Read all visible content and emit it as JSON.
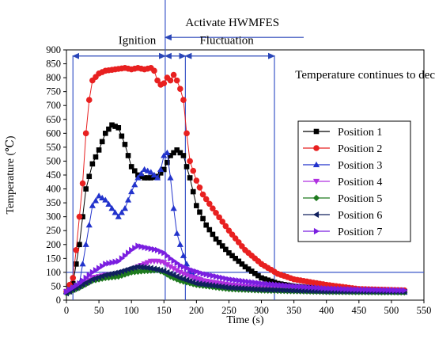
{
  "chart_data": {
    "type": "line",
    "xlabel": "Time (s)",
    "ylabel": "Temperature (℃)",
    "xlim": [
      0,
      550
    ],
    "ylim": [
      0,
      900
    ],
    "xticks": [
      0,
      50,
      100,
      150,
      200,
      250,
      300,
      350,
      400,
      450,
      500,
      550
    ],
    "yticks": [
      0,
      50,
      100,
      150,
      200,
      250,
      300,
      350,
      400,
      450,
      500,
      550,
      600,
      650,
      700,
      750,
      800,
      850,
      900
    ],
    "legend_position": "right",
    "reference_lines": {
      "vertical_x": [
        10,
        152,
        183,
        320
      ],
      "horizontal_y": [
        100
      ]
    },
    "annotations": [
      {
        "text": "Activate HWMFES",
        "x": 183,
        "y": 985
      },
      {
        "text": "Ignition",
        "x": 80,
        "y": 922
      },
      {
        "text": "Fluctuation",
        "x": 205,
        "y": 922
      },
      {
        "text": "Temperature continues to decline",
        "x": 352,
        "y": 798
      }
    ],
    "spans": [
      {
        "x_from": 10,
        "x_to": 152,
        "y": 878
      },
      {
        "x_from": 152,
        "x_to": 183,
        "y": 878
      },
      {
        "x_from": 183,
        "x_to": 320,
        "y": 878
      }
    ],
    "arrow": {
      "x_from": 365,
      "x_to": 152,
      "y": 945
    },
    "series": [
      {
        "name": "Position 1",
        "color": "#000000",
        "marker": "square",
        "points": [
          [
            0,
            30
          ],
          [
            10,
            60
          ],
          [
            20,
            200
          ],
          [
            30,
            400
          ],
          [
            40,
            490
          ],
          [
            50,
            540
          ],
          [
            60,
            600
          ],
          [
            70,
            630
          ],
          [
            80,
            620
          ],
          [
            90,
            560
          ],
          [
            100,
            480
          ],
          [
            110,
            450
          ],
          [
            120,
            440
          ],
          [
            130,
            440
          ],
          [
            140,
            445
          ],
          [
            150,
            470
          ],
          [
            160,
            520
          ],
          [
            170,
            540
          ],
          [
            180,
            520
          ],
          [
            190,
            440
          ],
          [
            200,
            340
          ],
          [
            215,
            270
          ],
          [
            230,
            220
          ],
          [
            250,
            170
          ],
          [
            275,
            120
          ],
          [
            300,
            80
          ],
          [
            325,
            60
          ],
          [
            350,
            50
          ],
          [
            400,
            40
          ],
          [
            450,
            35
          ],
          [
            520,
            30
          ]
        ]
      },
      {
        "name": "Position 2",
        "color": "#e82020",
        "marker": "circle",
        "points": [
          [
            0,
            30
          ],
          [
            10,
            80
          ],
          [
            15,
            180
          ],
          [
            20,
            300
          ],
          [
            25,
            420
          ],
          [
            30,
            600
          ],
          [
            35,
            720
          ],
          [
            40,
            790
          ],
          [
            50,
            815
          ],
          [
            60,
            825
          ],
          [
            75,
            830
          ],
          [
            90,
            835
          ],
          [
            100,
            830
          ],
          [
            110,
            835
          ],
          [
            120,
            830
          ],
          [
            130,
            835
          ],
          [
            135,
            825
          ],
          [
            140,
            790
          ],
          [
            145,
            775
          ],
          [
            150,
            780
          ],
          [
            155,
            800
          ],
          [
            160,
            790
          ],
          [
            165,
            810
          ],
          [
            170,
            790
          ],
          [
            175,
            760
          ],
          [
            180,
            720
          ],
          [
            185,
            600
          ],
          [
            190,
            500
          ],
          [
            200,
            430
          ],
          [
            210,
            380
          ],
          [
            225,
            330
          ],
          [
            250,
            250
          ],
          [
            275,
            180
          ],
          [
            300,
            130
          ],
          [
            325,
            95
          ],
          [
            350,
            75
          ],
          [
            400,
            55
          ],
          [
            450,
            40
          ],
          [
            520,
            35
          ]
        ]
      },
      {
        "name": "Position 3",
        "color": "#2233cc",
        "marker": "triangle-up",
        "points": [
          [
            0,
            30
          ],
          [
            20,
            60
          ],
          [
            30,
            200
          ],
          [
            40,
            340
          ],
          [
            50,
            375
          ],
          [
            60,
            360
          ],
          [
            70,
            330
          ],
          [
            80,
            300
          ],
          [
            90,
            330
          ],
          [
            100,
            390
          ],
          [
            110,
            440
          ],
          [
            120,
            470
          ],
          [
            130,
            460
          ],
          [
            140,
            440
          ],
          [
            145,
            470
          ],
          [
            150,
            520
          ],
          [
            155,
            530
          ],
          [
            160,
            440
          ],
          [
            165,
            330
          ],
          [
            170,
            240
          ],
          [
            180,
            160
          ],
          [
            190,
            100
          ],
          [
            200,
            80
          ],
          [
            220,
            60
          ],
          [
            250,
            50
          ],
          [
            300,
            40
          ],
          [
            350,
            35
          ],
          [
            450,
            32
          ],
          [
            520,
            30
          ]
        ]
      },
      {
        "name": "Position 4",
        "color": "#b030e0",
        "marker": "triangle-down",
        "points": [
          [
            0,
            30
          ],
          [
            20,
            50
          ],
          [
            40,
            80
          ],
          [
            60,
            90
          ],
          [
            80,
            95
          ],
          [
            100,
            110
          ],
          [
            110,
            120
          ],
          [
            120,
            130
          ],
          [
            130,
            140
          ],
          [
            140,
            140
          ],
          [
            150,
            135
          ],
          [
            160,
            120
          ],
          [
            175,
            100
          ],
          [
            190,
            85
          ],
          [
            210,
            70
          ],
          [
            250,
            55
          ],
          [
            300,
            45
          ],
          [
            400,
            35
          ],
          [
            520,
            30
          ]
        ]
      },
      {
        "name": "Position 5",
        "color": "#1e7a1e",
        "marker": "diamond",
        "points": [
          [
            0,
            25
          ],
          [
            20,
            45
          ],
          [
            40,
            70
          ],
          [
            60,
            80
          ],
          [
            80,
            85
          ],
          [
            100,
            100
          ],
          [
            120,
            105
          ],
          [
            140,
            108
          ],
          [
            150,
            100
          ],
          [
            160,
            85
          ],
          [
            175,
            70
          ],
          [
            200,
            55
          ],
          [
            250,
            40
          ],
          [
            300,
            35
          ],
          [
            400,
            30
          ],
          [
            520,
            28
          ]
        ]
      },
      {
        "name": "Position 6",
        "color": "#10205e",
        "marker": "triangle-left",
        "points": [
          [
            0,
            25
          ],
          [
            20,
            50
          ],
          [
            40,
            75
          ],
          [
            60,
            90
          ],
          [
            80,
            100
          ],
          [
            100,
            115
          ],
          [
            110,
            120
          ],
          [
            120,
            118
          ],
          [
            130,
            115
          ],
          [
            140,
            110
          ],
          [
            150,
            105
          ],
          [
            160,
            95
          ],
          [
            175,
            80
          ],
          [
            200,
            60
          ],
          [
            250,
            45
          ],
          [
            300,
            38
          ],
          [
            400,
            32
          ],
          [
            520,
            30
          ]
        ]
      },
      {
        "name": "Position 7",
        "color": "#7a1ee0",
        "marker": "triangle-right",
        "points": [
          [
            0,
            30
          ],
          [
            20,
            60
          ],
          [
            40,
            100
          ],
          [
            60,
            130
          ],
          [
            80,
            140
          ],
          [
            100,
            180
          ],
          [
            110,
            195
          ],
          [
            120,
            190
          ],
          [
            130,
            185
          ],
          [
            140,
            180
          ],
          [
            150,
            170
          ],
          [
            160,
            150
          ],
          [
            175,
            125
          ],
          [
            190,
            110
          ],
          [
            210,
            95
          ],
          [
            250,
            75
          ],
          [
            300,
            60
          ],
          [
            350,
            50
          ],
          [
            400,
            42
          ],
          [
            450,
            38
          ],
          [
            520,
            35
          ]
        ]
      }
    ]
  }
}
